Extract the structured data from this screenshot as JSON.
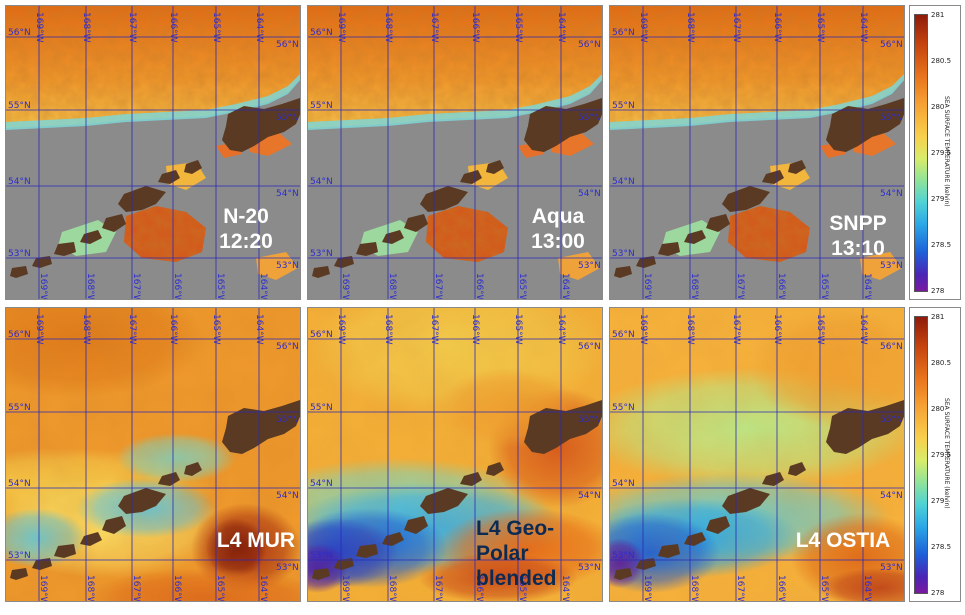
{
  "panels": [
    {
      "id": "n20",
      "label": "N-20\n12:20",
      "label_style": "light",
      "kind": "l2"
    },
    {
      "id": "aqua",
      "label": "Aqua\n13:00",
      "label_style": "light",
      "kind": "l2"
    },
    {
      "id": "snpp",
      "label": "SNPP\n13:10",
      "label_style": "light",
      "kind": "l2"
    },
    {
      "id": "mur",
      "label": "L4 MUR",
      "label_style": "light",
      "kind": "mur"
    },
    {
      "id": "geo",
      "label": "L4 Geo-\nPolar\nblended",
      "label_style": "dark",
      "kind": "geo"
    },
    {
      "id": "ostia",
      "label": "L4 OSTIA",
      "label_style": "light",
      "kind": "ostia"
    }
  ],
  "longitude_ticks": [
    "169°W",
    "168°W",
    "167°W",
    "166°W",
    "165°W",
    "164°W"
  ],
  "latitude_ticks": [
    "56°N",
    "55°N",
    "54°N",
    "53°N"
  ],
  "colorbars": [
    {
      "title": "SEA SURFACE TEMPERATURE (kelvin)",
      "ticks": [
        "281",
        "280.5",
        "280",
        "279.5",
        "279",
        "278.5",
        "278"
      ]
    },
    {
      "title": "SEA SURFACE TEMPERATURE (kelvin)",
      "ticks": [
        "281",
        "280.5",
        "280",
        "279.5",
        "279",
        "278.5",
        "278"
      ]
    }
  ],
  "colors": {
    "land": "#5a3a22",
    "no_data": "#8b8b8b",
    "grid": "#2a2ab8"
  }
}
